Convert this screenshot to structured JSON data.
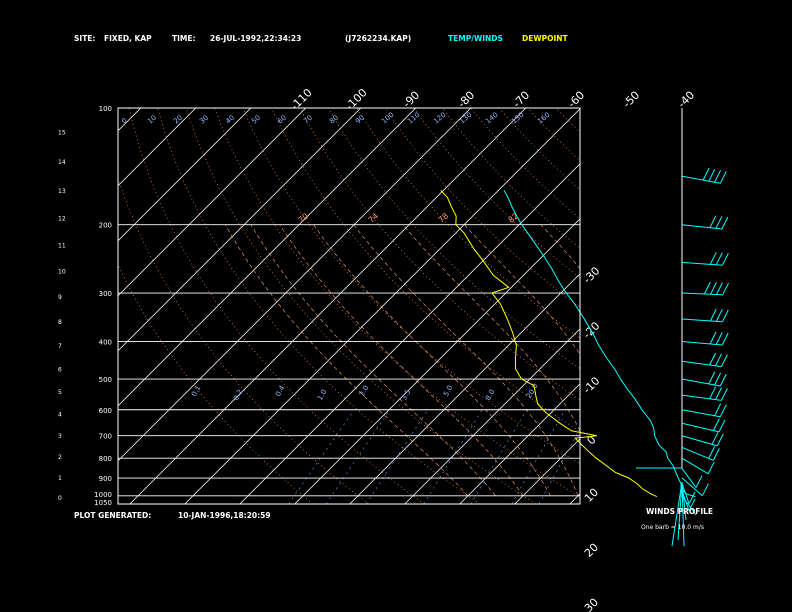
{
  "header": {
    "site_label": "SITE:",
    "site_value": "FIXED, KAP",
    "time_label": "TIME:",
    "time_value": "26-JUL-1992,22:34:23",
    "file_value": "(J7262234.KAP)",
    "temp_label": "TEMP/WINDS",
    "dew_label": "DEWPOINT"
  },
  "footer": {
    "generated_label": "PLOT GENERATED:",
    "generated_value": "10-JAN-1996,18:20:59"
  },
  "wind_panel": {
    "title": "WINDS PROFILE",
    "note": "One barb = 10.0 m/s"
  },
  "colors": {
    "background": "#000000",
    "temp": "#00ffff",
    "dewpoint": "#ffff00",
    "isobar": "#ffffff",
    "isotherm": "#ffffff",
    "dry_adiabat": "#ff8c40",
    "moist_adiabat": "#ffaa66",
    "mixing_ratio": "#5fa8ff"
  },
  "chart_data": {
    "type": "line",
    "pressure_labels": [
      "100",
      "200",
      "300",
      "400",
      "500",
      "600",
      "700",
      "800",
      "900",
      "1000",
      "1050"
    ],
    "height_labels": [
      "0",
      "1",
      "2",
      "3",
      "4",
      "5",
      "6",
      "7",
      "8",
      "9",
      "10",
      "11",
      "12",
      "13",
      "14",
      "15"
    ],
    "temp_labels_top": [
      "-110",
      "-100",
      "-90",
      "-80",
      "-70",
      "-60",
      "-50",
      "-40"
    ],
    "temp_labels_right": [
      "-30",
      "-20",
      "-10",
      "0",
      "10",
      "20",
      "30"
    ],
    "potential_temp_labels": [
      "0",
      "10",
      "20",
      "30",
      "40",
      "50",
      "60",
      "70",
      "80",
      "90",
      "100",
      "110",
      "120",
      "130",
      "140",
      "150",
      "160"
    ],
    "mixing_ratio_labels": [
      "0.1",
      "0.2",
      "0.4",
      "1.0",
      "2.0",
      "3.5",
      "5.0",
      "8.0",
      "20.0"
    ],
    "equiv_potential_labels": [
      "70",
      "74",
      "78",
      "82"
    ],
    "temperature": [
      {
        "p": 1005,
        "t": 31.5
      },
      {
        "p": 990,
        "t": 29.5
      },
      {
        "p": 960,
        "t": 27.5
      },
      {
        "p": 930,
        "t": 26.5
      },
      {
        "p": 900,
        "t": 25.0
      },
      {
        "p": 870,
        "t": 23.5
      },
      {
        "p": 840,
        "t": 22.0
      },
      {
        "p": 800,
        "t": 19.5
      },
      {
        "p": 770,
        "t": 18.0
      },
      {
        "p": 740,
        "t": 15.5
      },
      {
        "p": 700,
        "t": 13.0
      },
      {
        "p": 670,
        "t": 11.5
      },
      {
        "p": 640,
        "t": 9.5
      },
      {
        "p": 600,
        "t": 6.0
      },
      {
        "p": 560,
        "t": 2.5
      },
      {
        "p": 530,
        "t": -0.5
      },
      {
        "p": 500,
        "t": -3.5
      },
      {
        "p": 470,
        "t": -6.5
      },
      {
        "p": 440,
        "t": -10.0
      },
      {
        "p": 410,
        "t": -13.5
      },
      {
        "p": 380,
        "t": -17.0
      },
      {
        "p": 350,
        "t": -21.0
      },
      {
        "p": 320,
        "t": -25.5
      },
      {
        "p": 300,
        "t": -29.0
      },
      {
        "p": 280,
        "t": -32.5
      },
      {
        "p": 260,
        "t": -36.0
      },
      {
        "p": 240,
        "t": -40.0
      },
      {
        "p": 220,
        "t": -44.5
      },
      {
        "p": 200,
        "t": -49.5
      },
      {
        "p": 190,
        "t": -52.0
      },
      {
        "p": 180,
        "t": -54.5
      },
      {
        "p": 170,
        "t": -57.0
      },
      {
        "p": 163,
        "t": -59.0
      }
    ],
    "dewpoint": [
      {
        "p": 1005,
        "t": 24.5
      },
      {
        "p": 990,
        "t": 23.0
      },
      {
        "p": 960,
        "t": 20.5
      },
      {
        "p": 930,
        "t": 18.5
      },
      {
        "p": 900,
        "t": 16.0
      },
      {
        "p": 870,
        "t": 12.5
      },
      {
        "p": 840,
        "t": 10.0
      },
      {
        "p": 800,
        "t": 6.5
      },
      {
        "p": 770,
        "t": 4.0
      },
      {
        "p": 740,
        "t": 1.5
      },
      {
        "p": 710,
        "t": -1.0
      },
      {
        "p": 700,
        "t": 2.5
      },
      {
        "p": 680,
        "t": -3.0
      },
      {
        "p": 650,
        "t": -6.5
      },
      {
        "p": 610,
        "t": -11.0
      },
      {
        "p": 580,
        "t": -14.0
      },
      {
        "p": 550,
        "t": -16.0
      },
      {
        "p": 520,
        "t": -18.0
      },
      {
        "p": 500,
        "t": -21.5
      },
      {
        "p": 470,
        "t": -24.5
      },
      {
        "p": 440,
        "t": -26.5
      },
      {
        "p": 410,
        "t": -28.5
      },
      {
        "p": 380,
        "t": -31.5
      },
      {
        "p": 350,
        "t": -35.0
      },
      {
        "p": 320,
        "t": -39.0
      },
      {
        "p": 300,
        "t": -42.5
      },
      {
        "p": 290,
        "t": -40.5
      },
      {
        "p": 270,
        "t": -45.5
      },
      {
        "p": 250,
        "t": -49.5
      },
      {
        "p": 230,
        "t": -54.0
      },
      {
        "p": 210,
        "t": -58.5
      },
      {
        "p": 200,
        "t": -61.5
      },
      {
        "p": 190,
        "t": -63.0
      },
      {
        "p": 180,
        "t": -65.5
      },
      {
        "p": 170,
        "t": -68.0
      },
      {
        "p": 163,
        "t": -70.5
      }
    ],
    "winds": [
      {
        "p": 1000,
        "dir": 200,
        "spd": 3
      },
      {
        "p": 970,
        "dir": 190,
        "spd": 5
      },
      {
        "p": 930,
        "dir": 170,
        "spd": 7
      },
      {
        "p": 900,
        "dir": 150,
        "spd": 8
      },
      {
        "p": 850,
        "dir": 200,
        "spd": 10
      },
      {
        "p": 800,
        "dir": 220,
        "spd": 12
      },
      {
        "p": 750,
        "dir": 230,
        "spd": 15
      },
      {
        "p": 700,
        "dir": 240,
        "spd": 18
      },
      {
        "p": 650,
        "dir": 245,
        "spd": 20
      },
      {
        "p": 600,
        "dir": 250,
        "spd": 24
      },
      {
        "p": 550,
        "dir": 255,
        "spd": 26
      },
      {
        "p": 500,
        "dir": 250,
        "spd": 28
      },
      {
        "p": 450,
        "dir": 255,
        "spd": 30
      },
      {
        "p": 400,
        "dir": 260,
        "spd": 33
      },
      {
        "p": 350,
        "dir": 262,
        "spd": 34
      },
      {
        "p": 300,
        "dir": 265,
        "spd": 35
      },
      {
        "p": 250,
        "dir": 262,
        "spd": 34
      },
      {
        "p": 200,
        "dir": 258,
        "spd": 33
      },
      {
        "p": 150,
        "dir": 250,
        "spd": 36
      }
    ]
  }
}
